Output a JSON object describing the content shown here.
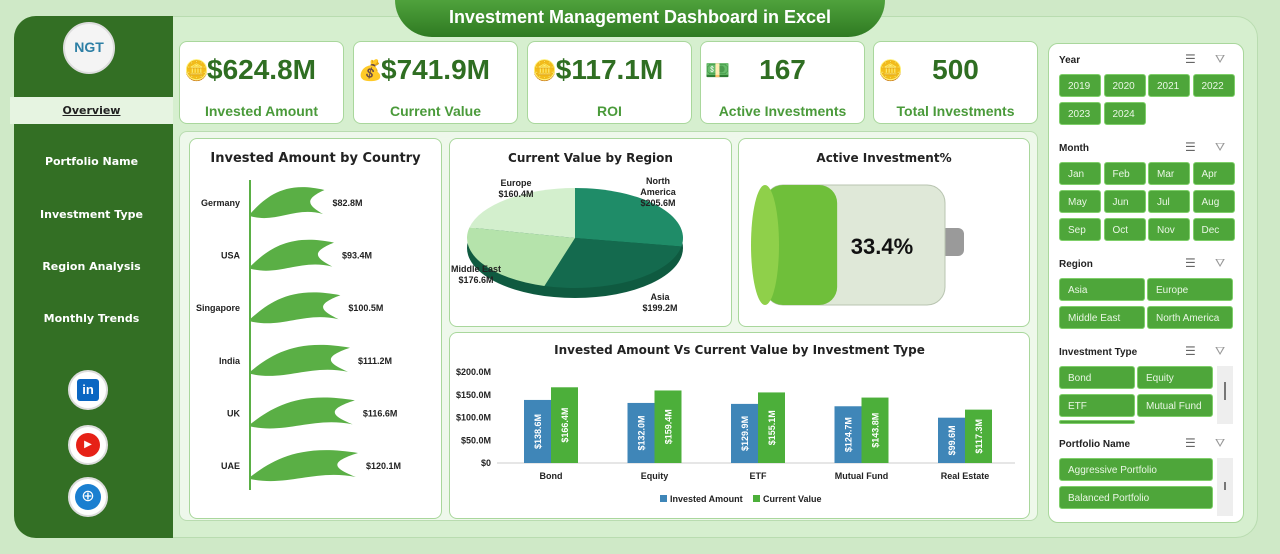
{
  "title": "Investment Management Dashboard in Excel",
  "logo": "NGT",
  "nav": [
    "Overview",
    "Portfolio Name",
    "Investment Type",
    "Region Analysis",
    "Monthly Trends"
  ],
  "social": [
    "linkedin-icon",
    "youtube-icon",
    "globe-icon"
  ],
  "kpis": [
    {
      "value": "$624.8M",
      "label": "Invested Amount",
      "icon": "coins-icon"
    },
    {
      "value": "$741.9M",
      "label": "Current Value",
      "icon": "money-bag-icon"
    },
    {
      "value": "$117.1M",
      "label": "ROI",
      "icon": "coins-icon"
    },
    {
      "value": "167",
      "label": "Active Investments",
      "icon": "cash-icon"
    },
    {
      "value": "500",
      "label": "Total Investments",
      "icon": "coins-icon"
    }
  ],
  "chart_data": [
    {
      "type": "bar",
      "orientation": "horizontal",
      "title": "Invested Amount by Country",
      "categories": [
        "Germany",
        "USA",
        "Singapore",
        "India",
        "UK",
        "UAE"
      ],
      "values": [
        82.8,
        93.4,
        100.5,
        111.2,
        116.6,
        120.1
      ],
      "labels": [
        "$82.8M",
        "$93.4M",
        "$100.5M",
        "$111.2M",
        "$116.6M",
        "$120.1M"
      ],
      "color": "#5aaf45"
    },
    {
      "type": "pie",
      "title": "Current Value by Region",
      "categories": [
        "North America",
        "Asia",
        "Middle East",
        "Europe"
      ],
      "values": [
        205.6,
        199.2,
        176.6,
        160.4
      ],
      "labels": [
        "$205.6M",
        "$199.2M",
        "$176.6M",
        "$160.4M"
      ],
      "colors": [
        "#1f8c68",
        "#146a4e",
        "#b5e3ab",
        "#d3efcd"
      ]
    },
    {
      "type": "gauge",
      "title": "Active Investment%",
      "value": 33.4,
      "label": "33.4%"
    },
    {
      "type": "bar",
      "title": "Invested Amount Vs Current Value by Investment Type",
      "categories": [
        "Bond",
        "Equity",
        "ETF",
        "Mutual Fund",
        "Real Estate"
      ],
      "series": [
        {
          "name": "Invested Amount",
          "values": [
            138.6,
            132.0,
            129.9,
            124.7,
            99.6
          ],
          "labels": [
            "$138.6M",
            "$132.0M",
            "$129.9M",
            "$124.7M",
            "$99.6M"
          ],
          "color": "#3f86b8"
        },
        {
          "name": "Current Value",
          "values": [
            166.4,
            159.4,
            155.1,
            143.8,
            117.3
          ],
          "labels": [
            "$166.4M",
            "$159.4M",
            "$155.1M",
            "$143.8M",
            "$117.3M"
          ],
          "color": "#4caf3a"
        }
      ],
      "yticks": [
        "$0",
        "$50.0M",
        "$100.0M",
        "$150.0M",
        "$200.0M"
      ],
      "ylim": [
        0,
        200
      ],
      "legend": "bottom"
    }
  ],
  "slicers": [
    {
      "title": "Year",
      "items": [
        "2019",
        "2020",
        "2021",
        "2022",
        "2023",
        "2024"
      ]
    },
    {
      "title": "Month",
      "items": [
        "Jan",
        "Feb",
        "Mar",
        "Apr",
        "May",
        "Jun",
        "Jul",
        "Aug",
        "Sep",
        "Oct",
        "Nov",
        "Dec"
      ]
    },
    {
      "title": "Region",
      "items": [
        "Asia",
        "Europe",
        "Middle East",
        "North America"
      ]
    },
    {
      "title": "Investment Type",
      "items": [
        "Bond",
        "Equity",
        "ETF",
        "Mutual Fund"
      ]
    },
    {
      "title": "Portfolio Name",
      "items": [
        "Aggressive Portfolio",
        "Balanced Portfolio"
      ]
    }
  ]
}
